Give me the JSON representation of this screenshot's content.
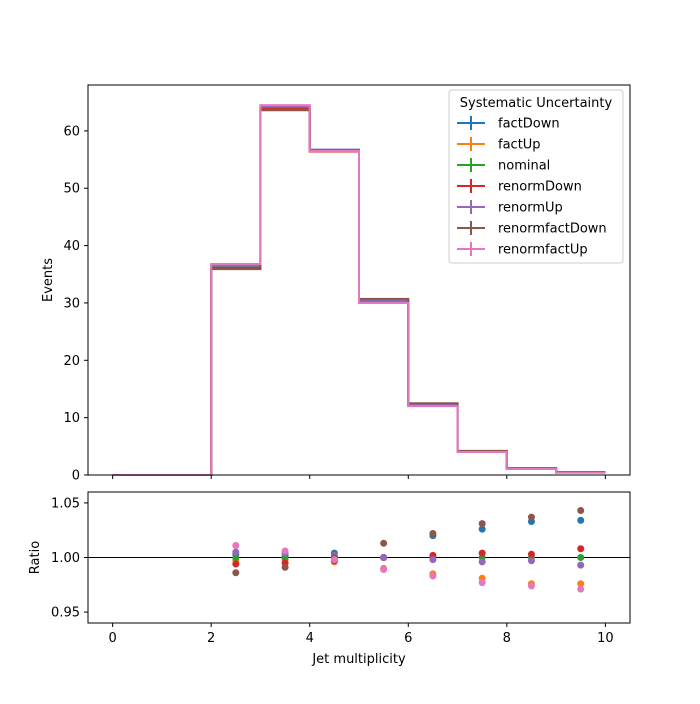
{
  "chart_data": [
    {
      "type": "line",
      "drawstyle": "steps",
      "ylabel": "Events",
      "xlim": [
        -0.5,
        10.5
      ],
      "ylim": [
        0,
        68
      ],
      "yticks": [
        "0",
        "10",
        "20",
        "30",
        "40",
        "50",
        "60"
      ],
      "legend": {
        "title": "Systematic Uncertainty",
        "placement": "top-right"
      },
      "bin_edges": [
        0,
        1,
        2,
        3,
        4,
        5,
        6,
        7,
        8,
        9,
        10
      ],
      "series": [
        {
          "name": "factDown",
          "color": "#1f77b4",
          "values": [
            0,
            0,
            36.4,
            64.1,
            56.7,
            30.4,
            12.4,
            4.1,
            1.2,
            0.5
          ]
        },
        {
          "name": "factUp",
          "color": "#ff7f0e",
          "values": [
            0,
            0,
            36.4,
            64.0,
            56.5,
            30.1,
            12.1,
            4.0,
            1.1,
            0.5
          ]
        },
        {
          "name": "nominal",
          "color": "#2ca02c",
          "values": [
            0,
            0,
            36.3,
            64.1,
            56.6,
            30.3,
            12.3,
            4.1,
            1.2,
            0.5
          ]
        },
        {
          "name": "renormDown",
          "color": "#d62728",
          "values": [
            0,
            0,
            36.1,
            63.8,
            56.4,
            30.2,
            12.3,
            4.1,
            1.2,
            0.5
          ]
        },
        {
          "name": "renormUp",
          "color": "#9467bd",
          "values": [
            0,
            0,
            36.5,
            64.3,
            56.7,
            30.3,
            12.2,
            4.0,
            1.1,
            0.5
          ]
        },
        {
          "name": "renormfactDown",
          "color": "#8c564b",
          "values": [
            0,
            0,
            35.9,
            63.6,
            56.6,
            30.7,
            12.5,
            4.2,
            1.2,
            0.5
          ]
        },
        {
          "name": "renormfactUp",
          "color": "#e377c2",
          "values": [
            0,
            0,
            36.8,
            64.5,
            56.5,
            30.0,
            12.0,
            4.0,
            1.1,
            0.4
          ]
        }
      ]
    },
    {
      "type": "scatter",
      "xlabel": "Jet multiplicity",
      "ylabel": "Ratio",
      "xlim": [
        -0.5,
        10.5
      ],
      "ylim": [
        0.94,
        1.06
      ],
      "xticks": [
        "0",
        "2",
        "4",
        "6",
        "8",
        "10"
      ],
      "yticks": [
        "0.95",
        "1.00",
        "1.05"
      ],
      "reference_line": 1.0,
      "x": [
        2.5,
        3.5,
        4.5,
        5.5,
        6.5,
        7.5,
        8.5,
        9.5
      ],
      "series": [
        {
          "name": "factDown",
          "color": "#1f77b4",
          "values": [
            1.003,
            1.002,
            1.004,
            1.0,
            1.02,
            1.026,
            1.033,
            1.034
          ]
        },
        {
          "name": "factUp",
          "color": "#ff7f0e",
          "values": [
            0.997,
            0.998,
            0.996,
            0.99,
            0.985,
            0.981,
            0.976,
            0.976
          ]
        },
        {
          "name": "nominal",
          "color": "#2ca02c",
          "values": [
            1.0,
            1.0,
            1.0,
            1.0,
            1.0,
            1.0,
            1.0,
            1.0
          ]
        },
        {
          "name": "renormDown",
          "color": "#d62728",
          "values": [
            0.994,
            0.995,
            0.997,
            1.0,
            1.002,
            1.004,
            1.003,
            1.008
          ]
        },
        {
          "name": "renormUp",
          "color": "#9467bd",
          "values": [
            1.005,
            1.004,
            1.002,
            1.0,
            0.998,
            0.996,
            0.997,
            0.993
          ]
        },
        {
          "name": "renormfactDown",
          "color": "#8c564b",
          "values": [
            0.986,
            0.991,
            1.0,
            1.013,
            1.022,
            1.031,
            1.037,
            1.043
          ]
        },
        {
          "name": "renormfactUp",
          "color": "#e377c2",
          "values": [
            1.011,
            1.006,
            0.998,
            0.989,
            0.983,
            0.977,
            0.974,
            0.971
          ]
        }
      ]
    }
  ]
}
